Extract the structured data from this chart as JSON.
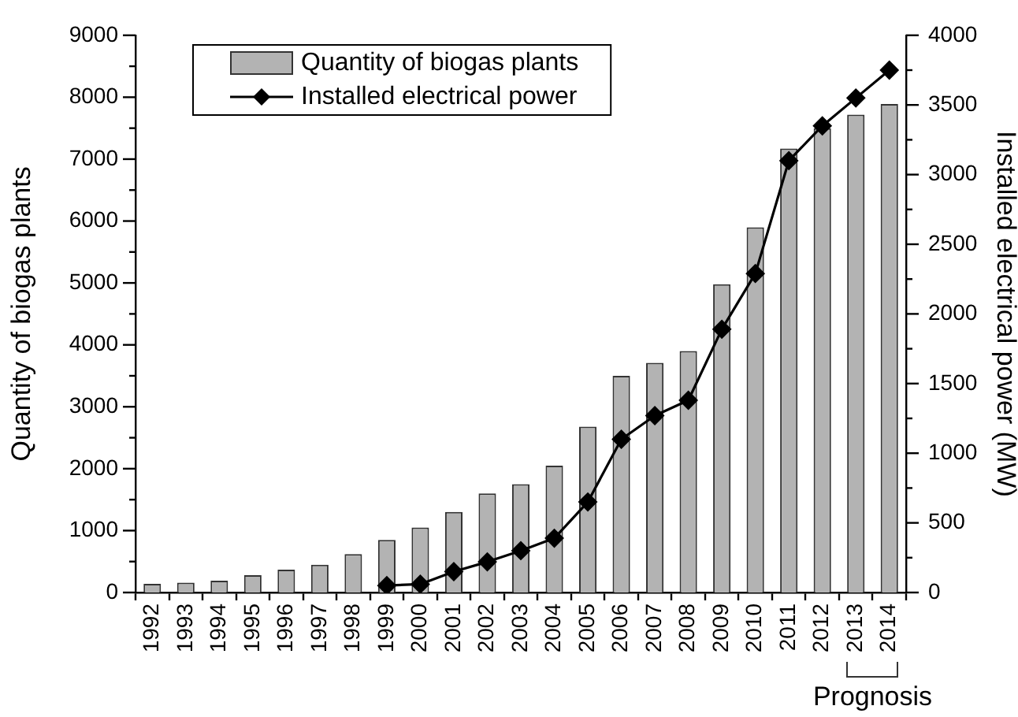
{
  "chart_data": {
    "type": "bar",
    "categories": [
      "1992",
      "1993",
      "1994",
      "1995",
      "1996",
      "1997",
      "1998",
      "1999",
      "2000",
      "2001",
      "2002",
      "2003",
      "2004",
      "2005",
      "2006",
      "2007",
      "2008",
      "2009",
      "2010",
      "2011",
      "2012",
      "2013",
      "2014"
    ],
    "series": [
      {
        "name": "Quantity of biogas plants",
        "color": "#b3b3b3",
        "values": [
          140,
          160,
          190,
          280,
          370,
          450,
          620,
          850,
          1050,
          1300,
          1600,
          1750,
          2050,
          2680,
          3500,
          3710,
          3900,
          4980,
          5900,
          7170,
          7500,
          7720,
          7890
        ]
      },
      {
        "name": "Installed electrical power",
        "type": "line",
        "axis": "y2",
        "color": "#000000",
        "values": [
          null,
          null,
          null,
          null,
          null,
          null,
          null,
          50,
          60,
          150,
          220,
          300,
          390,
          650,
          1100,
          1270,
          1380,
          1890,
          2290,
          3100,
          3350,
          3550,
          3750
        ]
      }
    ],
    "ylabel": "Quantity of biogas plants",
    "y2label": "Installed electrical power (MW)",
    "ylim": [
      0,
      9000
    ],
    "yticks": [
      0,
      {
        "value": 500,
        "label": null
      },
      1000,
      {
        "value": 1500,
        "label": null
      },
      2000,
      {
        "value": 2500,
        "label": null
      },
      3000,
      {
        "value": 3500,
        "label": null
      },
      4000,
      {
        "value": 4500,
        "label": null
      },
      5000,
      {
        "value": 5500,
        "label": null
      },
      6000,
      {
        "value": 6500,
        "label": null
      },
      7000,
      {
        "value": 7500,
        "label": null
      },
      8000,
      {
        "value": 8500,
        "label": null
      },
      9000
    ],
    "y2lim": [
      0,
      4000
    ],
    "y2ticks": [
      0,
      {
        "value": 250,
        "label": null
      },
      500,
      {
        "value": 750,
        "label": null
      },
      1000,
      {
        "value": 1250,
        "label": null
      },
      1500,
      {
        "value": 1750,
        "label": null
      },
      2000,
      {
        "value": 2250,
        "label": null
      },
      2500,
      {
        "value": 2750,
        "label": null
      },
      3000,
      {
        "value": 3250,
        "label": null
      },
      3500,
      {
        "value": 3750,
        "label": null
      },
      4000
    ],
    "marker": "diamond",
    "legend": "top left",
    "annotations": [
      "Prognosis"
    ]
  }
}
